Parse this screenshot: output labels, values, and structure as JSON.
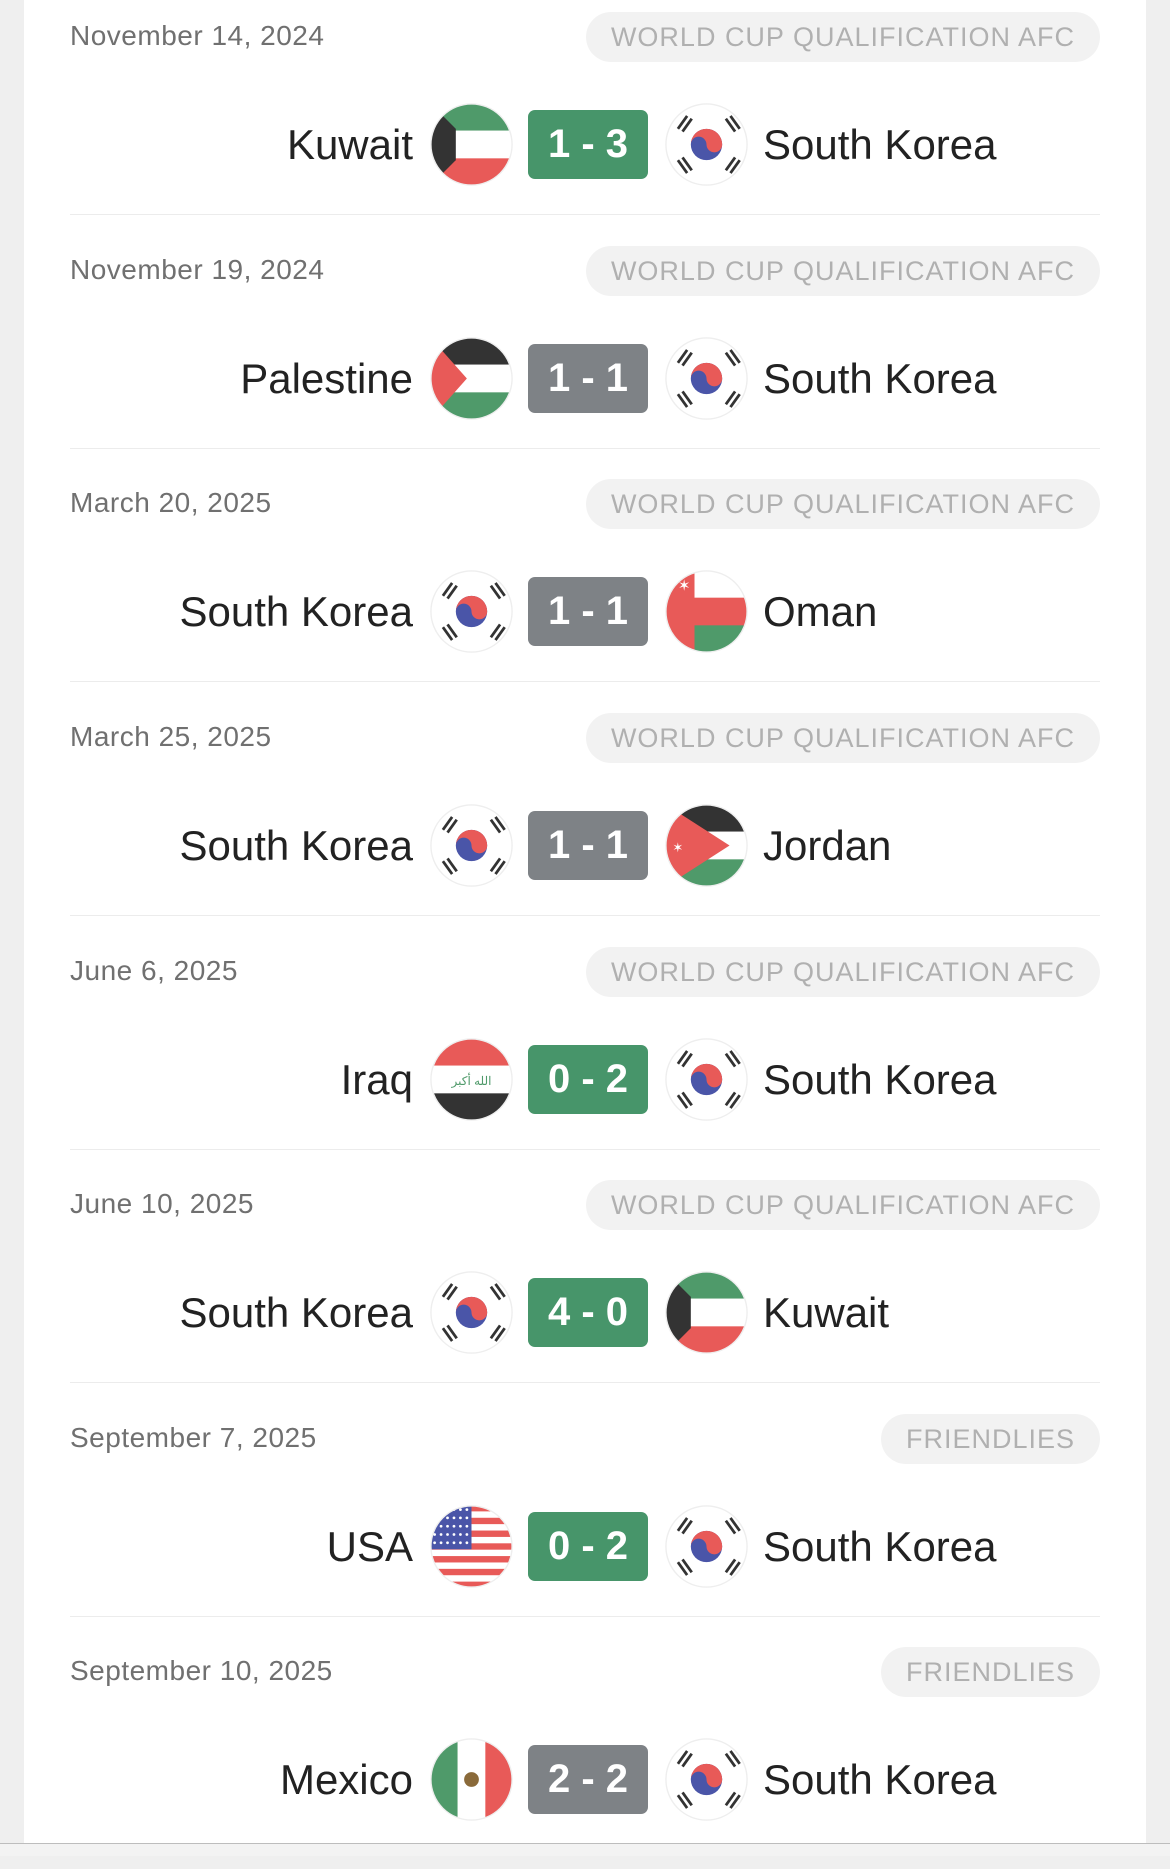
{
  "colors": {
    "win": "#47956a",
    "draw": "#7e8286"
  },
  "matches": [
    {
      "date": "November 14, 2024",
      "competition": "WORLD CUP QUALIFICATION AFC",
      "home": "Kuwait",
      "home_flag": "kuwait",
      "score": "1 - 3",
      "result": "win",
      "away": "South Korea",
      "away_flag": "korea"
    },
    {
      "date": "November 19, 2024",
      "competition": "WORLD CUP QUALIFICATION AFC",
      "home": "Palestine",
      "home_flag": "palestine",
      "score": "1 - 1",
      "result": "draw",
      "away": "South Korea",
      "away_flag": "korea"
    },
    {
      "date": "March 20, 2025",
      "competition": "WORLD CUP QUALIFICATION AFC",
      "home": "South Korea",
      "home_flag": "korea",
      "score": "1 - 1",
      "result": "draw",
      "away": "Oman",
      "away_flag": "oman"
    },
    {
      "date": "March 25, 2025",
      "competition": "WORLD CUP QUALIFICATION AFC",
      "home": "South Korea",
      "home_flag": "korea",
      "score": "1 - 1",
      "result": "draw",
      "away": "Jordan",
      "away_flag": "jordan"
    },
    {
      "date": "June 6, 2025",
      "competition": "WORLD CUP QUALIFICATION AFC",
      "home": "Iraq",
      "home_flag": "iraq",
      "score": "0 - 2",
      "result": "win",
      "away": "South Korea",
      "away_flag": "korea"
    },
    {
      "date": "June 10, 2025",
      "competition": "WORLD CUP QUALIFICATION AFC",
      "home": "South Korea",
      "home_flag": "korea",
      "score": "4 - 0",
      "result": "win",
      "away": "Kuwait",
      "away_flag": "kuwait"
    },
    {
      "date": "September 7, 2025",
      "competition": "FRIENDLIES",
      "home": "USA",
      "home_flag": "usa",
      "score": "0 - 2",
      "result": "win",
      "away": "South Korea",
      "away_flag": "korea"
    },
    {
      "date": "September 10, 2025",
      "competition": "FRIENDLIES",
      "home": "Mexico",
      "home_flag": "mexico",
      "score": "2 - 2",
      "result": "draw",
      "away": "South Korea",
      "away_flag": "korea"
    }
  ]
}
